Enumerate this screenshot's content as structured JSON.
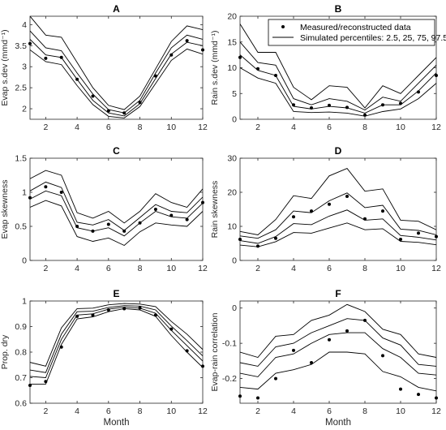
{
  "legend": {
    "points_label": "Measured/reconstructed data",
    "lines_label": "Simulated percentiles: 2.5, 25, 75, 97.5",
    "placement": "top-right of panel B"
  },
  "chart_data": [
    {
      "type": "line",
      "title": "A",
      "xlabel": "",
      "ylabel": "Evap s.dev (mmd⁻¹)",
      "x": [
        1,
        2,
        3,
        4,
        5,
        6,
        7,
        8,
        9,
        10,
        11,
        12
      ],
      "xlim": [
        1,
        12
      ],
      "ylim": [
        1.75,
        4.2
      ],
      "xticks": [
        2,
        4,
        6,
        8,
        10,
        12
      ],
      "yticks": [
        2,
        2.5,
        3,
        3.5,
        4
      ],
      "series": [
        {
          "values": [
            4.2,
            3.75,
            3.7,
            3.1,
            2.5,
            2.08,
            1.98,
            2.3,
            2.95,
            3.6,
            3.97,
            3.88
          ]
        },
        {
          "values": [
            3.85,
            3.45,
            3.38,
            2.85,
            2.35,
            1.98,
            1.9,
            2.2,
            2.85,
            3.45,
            3.75,
            3.65
          ]
        },
        {
          "values": [
            3.65,
            3.28,
            3.22,
            2.7,
            2.2,
            1.9,
            1.83,
            2.12,
            2.72,
            3.3,
            3.58,
            3.5
          ]
        },
        {
          "values": [
            3.4,
            3.12,
            3.05,
            2.55,
            2.1,
            1.82,
            1.78,
            2.05,
            2.6,
            3.15,
            3.42,
            3.3
          ]
        }
      ],
      "points": [
        3.55,
        3.2,
        3.22,
        2.7,
        2.3,
        1.95,
        1.9,
        2.15,
        2.78,
        3.28,
        3.62,
        3.4
      ]
    },
    {
      "type": "line",
      "title": "B",
      "xlabel": "",
      "ylabel": "Rain s.dev (mmd⁻¹)",
      "x": [
        1,
        2,
        3,
        4,
        5,
        6,
        7,
        8,
        9,
        10,
        11,
        12
      ],
      "xlim": [
        1,
        12
      ],
      "ylim": [
        0,
        20
      ],
      "xticks": [
        2,
        4,
        6,
        8,
        10,
        12
      ],
      "yticks": [
        0,
        5,
        10,
        15,
        20
      ],
      "series": [
        {
          "values": [
            18.5,
            13,
            13,
            6.2,
            3.8,
            6.5,
            6.2,
            2.2,
            6.5,
            5,
            8.5,
            12
          ]
        },
        {
          "values": [
            15,
            11,
            10.5,
            4,
            2.8,
            4,
            3.5,
            1.8,
            4.3,
            3.5,
            7,
            10.5
          ]
        },
        {
          "values": [
            12.5,
            9.5,
            8.5,
            2.5,
            2,
            2.5,
            2.2,
            1.2,
            2.8,
            2.8,
            5.5,
            9
          ]
        },
        {
          "values": [
            10,
            8,
            7,
            1.5,
            1.3,
            1.4,
            1.2,
            0.6,
            1.5,
            2,
            4,
            7
          ]
        }
      ],
      "points": [
        12,
        9.8,
        8.5,
        2.8,
        2.2,
        2.7,
        2.3,
        0.8,
        2.8,
        3.1,
        5.3,
        8.5
      ]
    },
    {
      "type": "line",
      "title": "C",
      "xlabel": "",
      "ylabel": "Evap skewness",
      "x": [
        1,
        2,
        3,
        4,
        5,
        6,
        7,
        8,
        9,
        10,
        11,
        12
      ],
      "xlim": [
        1,
        12
      ],
      "ylim": [
        0,
        1.5
      ],
      "xticks": [
        2,
        4,
        6,
        8,
        10,
        12
      ],
      "yticks": [
        0,
        0.5,
        1,
        1.5
      ],
      "series": [
        {
          "values": [
            1.2,
            1.32,
            1.25,
            0.7,
            0.62,
            0.72,
            0.55,
            0.72,
            0.98,
            0.85,
            0.78,
            1.05
          ]
        },
        {
          "values": [
            1.02,
            1.15,
            1.07,
            0.56,
            0.52,
            0.6,
            0.44,
            0.63,
            0.82,
            0.72,
            0.7,
            0.93
          ]
        },
        {
          "values": [
            0.9,
            1.02,
            0.95,
            0.48,
            0.43,
            0.48,
            0.36,
            0.55,
            0.72,
            0.64,
            0.62,
            0.84
          ]
        },
        {
          "values": [
            0.78,
            0.88,
            0.8,
            0.35,
            0.28,
            0.33,
            0.22,
            0.42,
            0.55,
            0.52,
            0.5,
            0.72
          ]
        }
      ],
      "points": [
        0.92,
        1.08,
        1.0,
        0.5,
        0.43,
        0.53,
        0.43,
        0.55,
        0.75,
        0.66,
        0.6,
        0.85
      ]
    },
    {
      "type": "line",
      "title": "D",
      "xlabel": "",
      "ylabel": "Rain skewness",
      "x": [
        1,
        2,
        3,
        4,
        5,
        6,
        7,
        8,
        9,
        10,
        11,
        12
      ],
      "xlim": [
        1,
        12
      ],
      "ylim": [
        0,
        30
      ],
      "xticks": [
        2,
        4,
        6,
        8,
        10,
        12
      ],
      "yticks": [
        0,
        10,
        20,
        30
      ],
      "series": [
        {
          "values": [
            8.5,
            7.5,
            12,
            19,
            18.2,
            24.8,
            27,
            20.3,
            21,
            11.8,
            11.5,
            9
          ]
        },
        {
          "values": [
            7.2,
            6.5,
            9,
            14.5,
            14,
            17.5,
            19.8,
            15.5,
            16.2,
            9.2,
            8.8,
            7.5
          ]
        },
        {
          "values": [
            5.8,
            5,
            7,
            10.8,
            10.5,
            13,
            14.8,
            11.8,
            12.2,
            7.3,
            6.8,
            6
          ]
        },
        {
          "values": [
            4.5,
            4,
            5.5,
            8.2,
            8,
            9.5,
            11,
            9,
            9.3,
            5.6,
            5.3,
            4.6
          ]
        }
      ],
      "points": [
        6.2,
        4.2,
        6.5,
        12.8,
        14.5,
        16.5,
        18.8,
        12.2,
        14.5,
        6.2,
        8,
        7
      ]
    },
    {
      "type": "line",
      "title": "E",
      "xlabel": "Month",
      "ylabel": "Prop. dry",
      "x": [
        1,
        2,
        3,
        4,
        5,
        6,
        7,
        8,
        9,
        10,
        11,
        12
      ],
      "xlim": [
        1,
        12
      ],
      "ylim": [
        0.6,
        1
      ],
      "xticks": [
        2,
        4,
        6,
        8,
        10,
        12
      ],
      "yticks": [
        0.6,
        0.7,
        0.8,
        0.9,
        1
      ],
      "series": [
        {
          "values": [
            0.76,
            0.745,
            0.895,
            0.97,
            0.972,
            0.985,
            0.99,
            0.988,
            0.978,
            0.92,
            0.87,
            0.81
          ]
        },
        {
          "values": [
            0.73,
            0.72,
            0.87,
            0.958,
            0.96,
            0.975,
            0.982,
            0.98,
            0.965,
            0.902,
            0.845,
            0.785
          ]
        },
        {
          "values": [
            0.705,
            0.7,
            0.85,
            0.945,
            0.95,
            0.968,
            0.976,
            0.972,
            0.952,
            0.885,
            0.825,
            0.765
          ]
        },
        {
          "values": [
            0.675,
            0.675,
            0.83,
            0.93,
            0.938,
            0.958,
            0.97,
            0.965,
            0.94,
            0.865,
            0.8,
            0.74
          ]
        }
      ],
      "points": [
        0.67,
        0.685,
        0.82,
        0.94,
        0.945,
        0.965,
        0.97,
        0.973,
        0.945,
        0.89,
        0.805,
        0.745
      ]
    },
    {
      "type": "line",
      "title": "F",
      "xlabel": "Month",
      "ylabel": "Evap-rain correlation",
      "x": [
        1,
        2,
        3,
        4,
        5,
        6,
        7,
        8,
        9,
        10,
        11,
        12
      ],
      "xlim": [
        1,
        12
      ],
      "ylim": [
        -0.27,
        0.02
      ],
      "xticks": [
        2,
        4,
        6,
        8,
        10,
        12
      ],
      "yticks": [
        -0.2,
        -0.1,
        0
      ],
      "series": [
        {
          "values": [
            -0.125,
            -0.14,
            -0.08,
            -0.075,
            -0.035,
            -0.02,
            0.01,
            -0.01,
            -0.06,
            -0.075,
            -0.13,
            -0.14
          ]
        },
        {
          "values": [
            -0.155,
            -0.165,
            -0.11,
            -0.1,
            -0.07,
            -0.05,
            -0.03,
            -0.035,
            -0.085,
            -0.105,
            -0.16,
            -0.165
          ]
        },
        {
          "values": [
            -0.185,
            -0.195,
            -0.14,
            -0.13,
            -0.1,
            -0.075,
            -0.07,
            -0.07,
            -0.115,
            -0.14,
            -0.185,
            -0.19
          ]
        },
        {
          "values": [
            -0.225,
            -0.23,
            -0.185,
            -0.175,
            -0.16,
            -0.125,
            -0.125,
            -0.13,
            -0.18,
            -0.195,
            -0.225,
            -0.235
          ]
        }
      ],
      "points": [
        -0.25,
        -0.255,
        -0.2,
        -0.12,
        -0.155,
        -0.09,
        -0.065,
        -0.035,
        -0.135,
        -0.23,
        -0.245,
        -0.255
      ]
    }
  ]
}
